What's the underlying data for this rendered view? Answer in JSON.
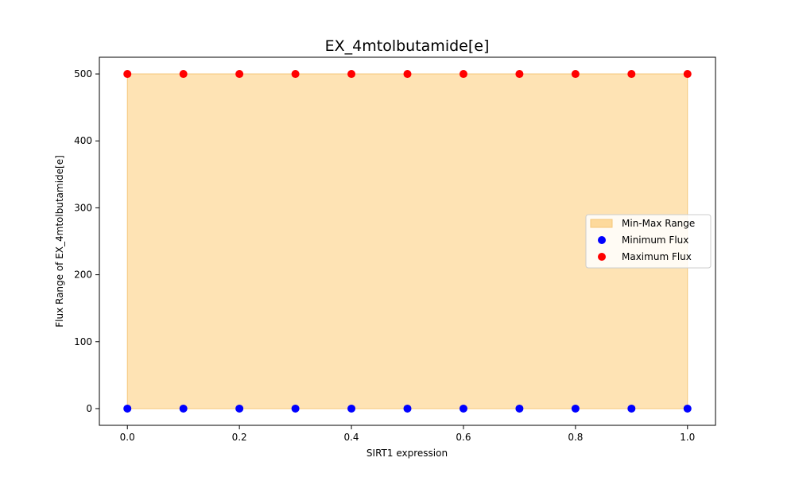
{
  "chart_data": {
    "type": "scatter",
    "title": "EX_4mtolbutamide[e]",
    "xlabel": "SIRT1 expression",
    "ylabel": "Flux Range of EX_4mtolbutamide[e]",
    "xlim": [
      -0.05,
      1.05
    ],
    "ylim": [
      -25,
      525
    ],
    "x_ticks": [
      0.0,
      0.2,
      0.4,
      0.6,
      0.8,
      1.0
    ],
    "x_tick_labels": [
      "0.0",
      "0.2",
      "0.4",
      "0.6",
      "0.8",
      "1.0"
    ],
    "y_ticks": [
      0,
      100,
      200,
      300,
      400,
      500
    ],
    "y_tick_labels": [
      "0",
      "100",
      "200",
      "300",
      "400",
      "500"
    ],
    "grid": false,
    "legend_position": "center-right",
    "x": [
      0.0,
      0.1,
      0.2,
      0.3,
      0.4,
      0.5,
      0.6,
      0.7,
      0.8,
      0.9,
      1.0
    ],
    "series": [
      {
        "name": "Min-Max Range",
        "kind": "fill_between",
        "color": "#fdd99b",
        "lower": [
          0,
          0,
          0,
          0,
          0,
          0,
          0,
          0,
          0,
          0,
          0
        ],
        "upper": [
          500,
          500,
          500,
          500,
          500,
          500,
          500,
          500,
          500,
          500,
          500
        ]
      },
      {
        "name": "Minimum Flux",
        "kind": "scatter",
        "color": "#0000ff",
        "values": [
          0,
          0,
          0,
          0,
          0,
          0,
          0,
          0,
          0,
          0,
          0
        ]
      },
      {
        "name": "Maximum Flux",
        "kind": "scatter",
        "color": "#ff0000",
        "values": [
          500,
          500,
          500,
          500,
          500,
          500,
          500,
          500,
          500,
          500,
          500
        ]
      }
    ]
  }
}
